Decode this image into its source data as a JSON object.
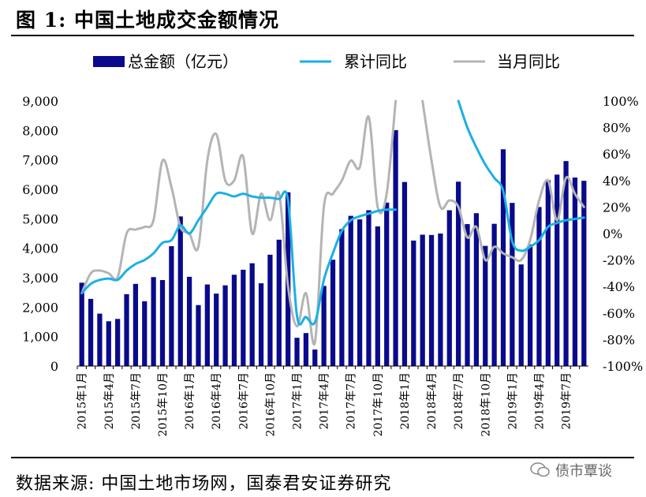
{
  "title": "图 1:  中国土地成交金额情况",
  "source": "数据来源:  中国土地市场网，国泰君安证券研究",
  "watermark": {
    "text": "债市覃谈",
    "icon": "wechat-icon"
  },
  "colors": {
    "bar": "#0a0a8c",
    "cum_line": "#1ab0e6",
    "mom_line": "#b4b4b4"
  },
  "chart_data": {
    "type": "bar",
    "legend": [
      "总金额（亿元）",
      "累计同比",
      "当月同比"
    ],
    "legend_position": "top",
    "categories": [
      "2015年1月",
      "2015年2月",
      "2015年3月",
      "2015年4月",
      "2015年5月",
      "2015年6月",
      "2015年7月",
      "2015年8月",
      "2015年9月",
      "2015年10月",
      "2015年11月",
      "2015年12月",
      "2016年1月",
      "2016年2月",
      "2016年3月",
      "2016年4月",
      "2016年5月",
      "2016年6月",
      "2016年7月",
      "2016年8月",
      "2016年9月",
      "2016年10月",
      "2016年11月",
      "2016年12月",
      "2017年1月",
      "2017年2月",
      "2017年3月",
      "2017年4月",
      "2017年5月",
      "2017年6月",
      "2017年7月",
      "2017年8月",
      "2017年9月",
      "2017年10月",
      "2017年11月",
      "2017年12月",
      "2018年1月",
      "2018年2月",
      "2018年3月",
      "2018年4月",
      "2018年5月",
      "2018年6月",
      "2018年7月",
      "2018年8月",
      "2018年9月",
      "2018年10月",
      "2018年11月",
      "2018年12月",
      "2019年1月",
      "2019年2月",
      "2019年3月",
      "2019年4月",
      "2019年5月",
      "2019年6月",
      "2019年7月",
      "2019年8月",
      "2019年9月"
    ],
    "x_tick_labels": [
      "2015年1月",
      "2015年4月",
      "2015年7月",
      "2015年10月",
      "2016年1月",
      "2016年4月",
      "2016年7月",
      "2016年10月",
      "2017年1月",
      "2017年4月",
      "2017年7月",
      "2017年10月",
      "2018年1月",
      "2018年4月",
      "2018年7月",
      "2018年10月",
      "2019年1月",
      "2019年4月",
      "2019年7月"
    ],
    "y_left": {
      "ylim": [
        0,
        9000
      ],
      "ticks": [
        "0",
        "1,000",
        "2,000",
        "3,000",
        "4,000",
        "5,000",
        "6,000",
        "7,000",
        "8,000",
        "9,000"
      ]
    },
    "y_right": {
      "ylim": [
        -100,
        100
      ],
      "ticks": [
        "-100%",
        "-80%",
        "-60%",
        "-40%",
        "-20%",
        "0%",
        "20%",
        "40%",
        "60%",
        "80%",
        "100%"
      ]
    },
    "grid": false,
    "series": [
      {
        "name": "总金额（亿元）",
        "axis": "left",
        "kind": "bar",
        "values": [
          2830,
          2280,
          1780,
          1520,
          1600,
          2440,
          2790,
          2200,
          3020,
          2920,
          4070,
          5080,
          3030,
          2070,
          2770,
          2460,
          2740,
          3100,
          3270,
          3490,
          2810,
          3780,
          4290,
          5900,
          960,
          1120,
          560,
          2720,
          3610,
          4650,
          5100,
          4980,
          5290,
          4740,
          5550,
          8010,
          6250,
          4260,
          4460,
          4450,
          4500,
          5290,
          6260,
          4820,
          5190,
          4080,
          4830,
          7360,
          5540,
          3450,
          4130,
          5400,
          6310,
          6500,
          6960,
          6400,
          6290
        ]
      },
      {
        "name": "累计同比",
        "axis": "right",
        "kind": "line",
        "values": [
          -45,
          -38,
          -35,
          -34,
          -35,
          -28,
          -23,
          -20,
          -15,
          -7,
          -5,
          6,
          0,
          10,
          20,
          30,
          30,
          28,
          30,
          28,
          27,
          27,
          26,
          25,
          -62,
          -63,
          -67,
          -35,
          -15,
          2,
          10,
          13,
          15,
          17,
          18,
          18,
          null,
          null,
          null,
          null,
          null,
          null,
          null,
          null,
          null,
          null,
          null,
          null,
          null,
          null,
          null,
          null,
          null,
          null,
          null,
          null,
          null
        ]
      },
      {
        "name": "累计同比",
        "axis": "right",
        "kind": "line",
        "values": [
          null,
          null,
          null,
          null,
          null,
          null,
          null,
          null,
          null,
          null,
          null,
          null,
          null,
          null,
          null,
          null,
          null,
          null,
          null,
          null,
          null,
          null,
          null,
          null,
          null,
          null,
          null,
          null,
          null,
          null,
          null,
          null,
          null,
          null,
          null,
          null,
          null,
          null,
          null,
          null,
          null,
          null,
          100,
          80,
          65,
          52,
          42,
          32,
          -6,
          -13,
          -10,
          -5,
          5,
          8,
          10,
          11,
          12
        ]
      },
      {
        "name": "当月同比",
        "axis": "right",
        "kind": "line",
        "values": [
          -45,
          -30,
          -28,
          -30,
          -33,
          0,
          3,
          5,
          10,
          55,
          35,
          5,
          0,
          -10,
          55,
          75,
          40,
          40,
          58,
          0,
          30,
          10,
          30,
          -40,
          -70,
          -45,
          -82,
          20,
          30,
          40,
          55,
          50,
          88,
          20,
          30,
          100,
          null,
          null,
          null,
          null,
          null,
          null,
          null,
          null,
          null,
          null,
          null,
          null,
          null,
          null,
          null,
          null,
          null,
          null,
          null,
          null,
          null
        ]
      },
      {
        "name": "当月同比",
        "axis": "right",
        "kind": "line",
        "values": [
          null,
          null,
          null,
          null,
          null,
          null,
          null,
          null,
          null,
          null,
          null,
          null,
          null,
          null,
          null,
          null,
          null,
          null,
          null,
          null,
          null,
          null,
          null,
          null,
          null,
          null,
          null,
          null,
          null,
          null,
          null,
          null,
          null,
          null,
          null,
          null,
          null,
          null,
          100,
          55,
          20,
          25,
          20,
          -3,
          5,
          -20,
          -10,
          -15,
          -18,
          -20,
          -5,
          25,
          40,
          10,
          42,
          30,
          20
        ]
      }
    ]
  }
}
